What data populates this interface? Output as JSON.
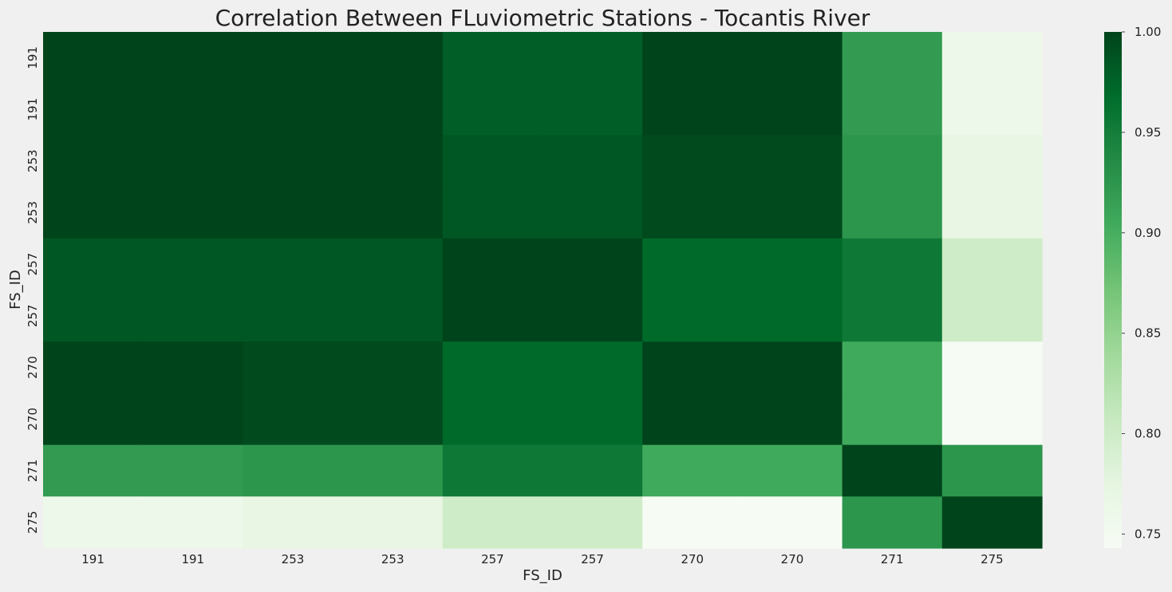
{
  "chart_data": {
    "type": "heatmap",
    "title": "Correlation Between FLuviometric Stations - Tocantis River",
    "xlabel": "FS_ID",
    "ylabel": "FS_ID",
    "x_categories": [
      "191",
      "191",
      "253",
      "253",
      "257",
      "257",
      "270",
      "270",
      "271",
      "275"
    ],
    "y_categories": [
      "191",
      "191",
      "253",
      "253",
      "257",
      "257",
      "270",
      "270",
      "271",
      "275"
    ],
    "values": [
      [
        1.0,
        1.0,
        1.0,
        1.0,
        0.98,
        0.98,
        1.0,
        1.0,
        0.92,
        0.76
      ],
      [
        1.0,
        1.0,
        1.0,
        1.0,
        0.98,
        0.98,
        1.0,
        1.0,
        0.92,
        0.76
      ],
      [
        1.0,
        1.0,
        1.0,
        1.0,
        0.985,
        0.985,
        0.995,
        0.995,
        0.925,
        0.77
      ],
      [
        1.0,
        1.0,
        1.0,
        1.0,
        0.985,
        0.985,
        0.995,
        0.995,
        0.925,
        0.77
      ],
      [
        0.985,
        0.985,
        0.985,
        0.985,
        1.0,
        1.0,
        0.97,
        0.97,
        0.955,
        0.8
      ],
      [
        0.985,
        0.985,
        0.985,
        0.985,
        1.0,
        1.0,
        0.97,
        0.97,
        0.955,
        0.8
      ],
      [
        1.0,
        1.0,
        0.995,
        0.995,
        0.97,
        0.97,
        1.0,
        1.0,
        0.905,
        0.745
      ],
      [
        1.0,
        1.0,
        0.995,
        0.995,
        0.97,
        0.97,
        1.0,
        1.0,
        0.905,
        0.745
      ],
      [
        0.92,
        0.92,
        0.925,
        0.925,
        0.955,
        0.955,
        0.905,
        0.905,
        1.0,
        0.925
      ],
      [
        0.76,
        0.76,
        0.77,
        0.77,
        0.8,
        0.8,
        0.745,
        0.745,
        0.925,
        1.0
      ]
    ],
    "colorbar": {
      "min": 0.743,
      "max": 1.0,
      "ticks": [
        "0.75",
        "0.80",
        "0.85",
        "0.90",
        "0.95",
        "1.00"
      ],
      "colormap": "Greens",
      "placement": "right"
    },
    "colormap_stops": [
      "#f7fcf5",
      "#e5f5e0",
      "#c7e9c0",
      "#a1d99b",
      "#74c476",
      "#41ab5d",
      "#238b45",
      "#006d2c",
      "#00441b"
    ],
    "background_color": "#f0f0f0",
    "text_color": "#222222",
    "grid": false
  }
}
